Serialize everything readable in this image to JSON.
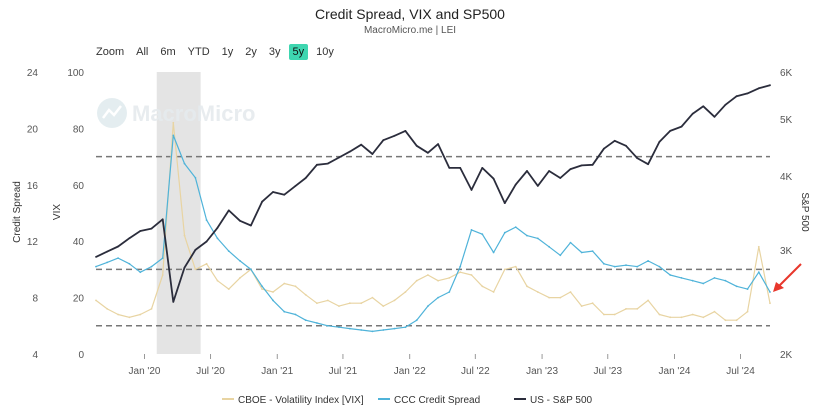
{
  "title": "Credit Spread, VIX and SP500",
  "subtitle": "MacroMicro.me | LEI",
  "watermark": "MacroMicro",
  "zoom": {
    "label": "Zoom",
    "buttons": [
      "All",
      "6m",
      "YTD",
      "1y",
      "2y",
      "3y",
      "5y",
      "10y"
    ],
    "active": "5y"
  },
  "colors": {
    "vix": "#e8d4a2",
    "credit": "#4fb3d9",
    "sp500": "#2b2d3c",
    "shade": "#e4e4e4",
    "dashed": "#777777",
    "arrow": "#e8372c"
  },
  "chart_data": {
    "type": "line",
    "title": "Credit Spread, VIX and SP500",
    "x_ticks": [
      "Jan '20",
      "Jul '20",
      "Jan '21",
      "Jul '21",
      "Jan '22",
      "Jul '22",
      "Jan '23",
      "Jul '23",
      "Jan '24",
      "Jul '24"
    ],
    "x_range": [
      "2019-08",
      "2024-09"
    ],
    "axes": {
      "credit_spread": {
        "label": "Credit Spread",
        "range": [
          4,
          24
        ],
        "ticks": [
          4,
          8,
          12,
          16,
          20,
          24
        ]
      },
      "vix": {
        "label": "VIX",
        "range": [
          0,
          100
        ],
        "ticks": [
          0,
          20,
          40,
          60,
          80,
          100
        ]
      },
      "sp500": {
        "label": "S&P 500",
        "scale": "log",
        "range": [
          2000,
          6000
        ],
        "ticks": [
          "2K",
          "3K",
          "4K",
          "5K",
          "6K"
        ]
      }
    },
    "reference_lines_vix": [
      10,
      30,
      70
    ],
    "shaded_period": [
      "2020-02",
      "2020-06"
    ],
    "series": [
      {
        "name": "CBOE - Volatility Index [VIX]",
        "axis": "vix",
        "dates": [
          "2019-08",
          "2019-09",
          "2019-10",
          "2019-11",
          "2019-12",
          "2020-01",
          "2020-02",
          "2020-03",
          "2020-04",
          "2020-05",
          "2020-06",
          "2020-07",
          "2020-08",
          "2020-09",
          "2020-10",
          "2020-11",
          "2020-12",
          "2021-01",
          "2021-02",
          "2021-03",
          "2021-04",
          "2021-05",
          "2021-06",
          "2021-07",
          "2021-08",
          "2021-09",
          "2021-10",
          "2021-11",
          "2021-12",
          "2022-01",
          "2022-02",
          "2022-03",
          "2022-04",
          "2022-05",
          "2022-06",
          "2022-07",
          "2022-08",
          "2022-09",
          "2022-10",
          "2022-11",
          "2022-12",
          "2023-01",
          "2023-02",
          "2023-03",
          "2023-04",
          "2023-05",
          "2023-06",
          "2023-07",
          "2023-08",
          "2023-09",
          "2023-10",
          "2023-11",
          "2023-12",
          "2024-01",
          "2024-02",
          "2024-03",
          "2024-04",
          "2024-05",
          "2024-06",
          "2024-07",
          "2024-08",
          "2024-09"
        ],
        "values": [
          19,
          16,
          14,
          13,
          14,
          16,
          28,
          82,
          42,
          30,
          32,
          26,
          23,
          27,
          30,
          23,
          22,
          25,
          24,
          21,
          18,
          19,
          17,
          18,
          18,
          20,
          17,
          19,
          22,
          26,
          28,
          26,
          27,
          29,
          28,
          24,
          22,
          30,
          31,
          24,
          22,
          20,
          20,
          22,
          17,
          18,
          14,
          14,
          16,
          16,
          19,
          14,
          13,
          13,
          14,
          13,
          15,
          12,
          12,
          15,
          38,
          18
        ]
      },
      {
        "name": "CCC Credit Spread",
        "axis": "credit_spread",
        "dates": [
          "2019-08",
          "2019-09",
          "2019-10",
          "2019-11",
          "2019-12",
          "2020-01",
          "2020-02",
          "2020-03",
          "2020-04",
          "2020-05",
          "2020-06",
          "2020-07",
          "2020-08",
          "2020-09",
          "2020-10",
          "2020-11",
          "2020-12",
          "2021-01",
          "2021-02",
          "2021-03",
          "2021-04",
          "2021-05",
          "2021-06",
          "2021-07",
          "2021-08",
          "2021-09",
          "2021-10",
          "2021-11",
          "2021-12",
          "2022-01",
          "2022-02",
          "2022-03",
          "2022-04",
          "2022-05",
          "2022-06",
          "2022-07",
          "2022-08",
          "2022-09",
          "2022-10",
          "2022-11",
          "2022-12",
          "2023-01",
          "2023-02",
          "2023-03",
          "2023-04",
          "2023-05",
          "2023-06",
          "2023-07",
          "2023-08",
          "2023-09",
          "2023-10",
          "2023-11",
          "2023-12",
          "2024-01",
          "2024-02",
          "2024-03",
          "2024-04",
          "2024-05",
          "2024-06",
          "2024-07",
          "2024-08",
          "2024-09"
        ],
        "values": [
          10.2,
          10.5,
          10.8,
          10.4,
          9.8,
          10.2,
          10.8,
          19.5,
          17.5,
          16.5,
          13.5,
          12.2,
          11.3,
          10.6,
          10.0,
          8.8,
          7.8,
          7.0,
          6.8,
          6.4,
          6.2,
          6.0,
          5.9,
          5.8,
          5.7,
          5.6,
          5.7,
          5.8,
          5.9,
          6.4,
          7.4,
          8.0,
          8.4,
          10.2,
          12.8,
          12.5,
          11.2,
          12.6,
          13.0,
          12.4,
          12.2,
          11.6,
          11.0,
          11.9,
          11.2,
          11.3,
          10.4,
          10.2,
          10.3,
          10.2,
          10.6,
          10.2,
          9.6,
          9.4,
          9.2,
          9.0,
          9.4,
          9.2,
          8.8,
          8.6,
          9.8,
          8.4
        ]
      },
      {
        "name": "US - S&P 500",
        "axis": "sp500",
        "dates": [
          "2019-08",
          "2019-09",
          "2019-10",
          "2019-11",
          "2019-12",
          "2020-01",
          "2020-02",
          "2020-03",
          "2020-04",
          "2020-05",
          "2020-06",
          "2020-07",
          "2020-08",
          "2020-09",
          "2020-10",
          "2020-11",
          "2020-12",
          "2021-01",
          "2021-02",
          "2021-03",
          "2021-04",
          "2021-05",
          "2021-06",
          "2021-07",
          "2021-08",
          "2021-09",
          "2021-10",
          "2021-11",
          "2021-12",
          "2022-01",
          "2022-02",
          "2022-03",
          "2022-04",
          "2022-05",
          "2022-06",
          "2022-07",
          "2022-08",
          "2022-09",
          "2022-10",
          "2022-11",
          "2022-12",
          "2023-01",
          "2023-02",
          "2023-03",
          "2023-04",
          "2023-05",
          "2023-06",
          "2023-07",
          "2023-08",
          "2023-09",
          "2023-10",
          "2023-11",
          "2023-12",
          "2024-01",
          "2024-02",
          "2024-03",
          "2024-04",
          "2024-05",
          "2024-06",
          "2024-07",
          "2024-08",
          "2024-09"
        ],
        "values": [
          2920,
          2980,
          3040,
          3140,
          3230,
          3260,
          3380,
          2450,
          2800,
          3000,
          3100,
          3270,
          3500,
          3360,
          3300,
          3620,
          3760,
          3720,
          3850,
          3970,
          4180,
          4200,
          4300,
          4400,
          4520,
          4360,
          4600,
          4680,
          4770,
          4500,
          4380,
          4530,
          4130,
          4130,
          3790,
          4130,
          3960,
          3600,
          3870,
          4080,
          3850,
          4080,
          3970,
          4110,
          4170,
          4180,
          4450,
          4590,
          4500,
          4290,
          4190,
          4570,
          4770,
          4850,
          5100,
          5250,
          5040,
          5280,
          5460,
          5520,
          5630,
          5700
        ]
      }
    ],
    "legend": [
      "CBOE - Volatility Index [VIX]",
      "CCC Credit Spread",
      "US - S&P 500"
    ]
  }
}
